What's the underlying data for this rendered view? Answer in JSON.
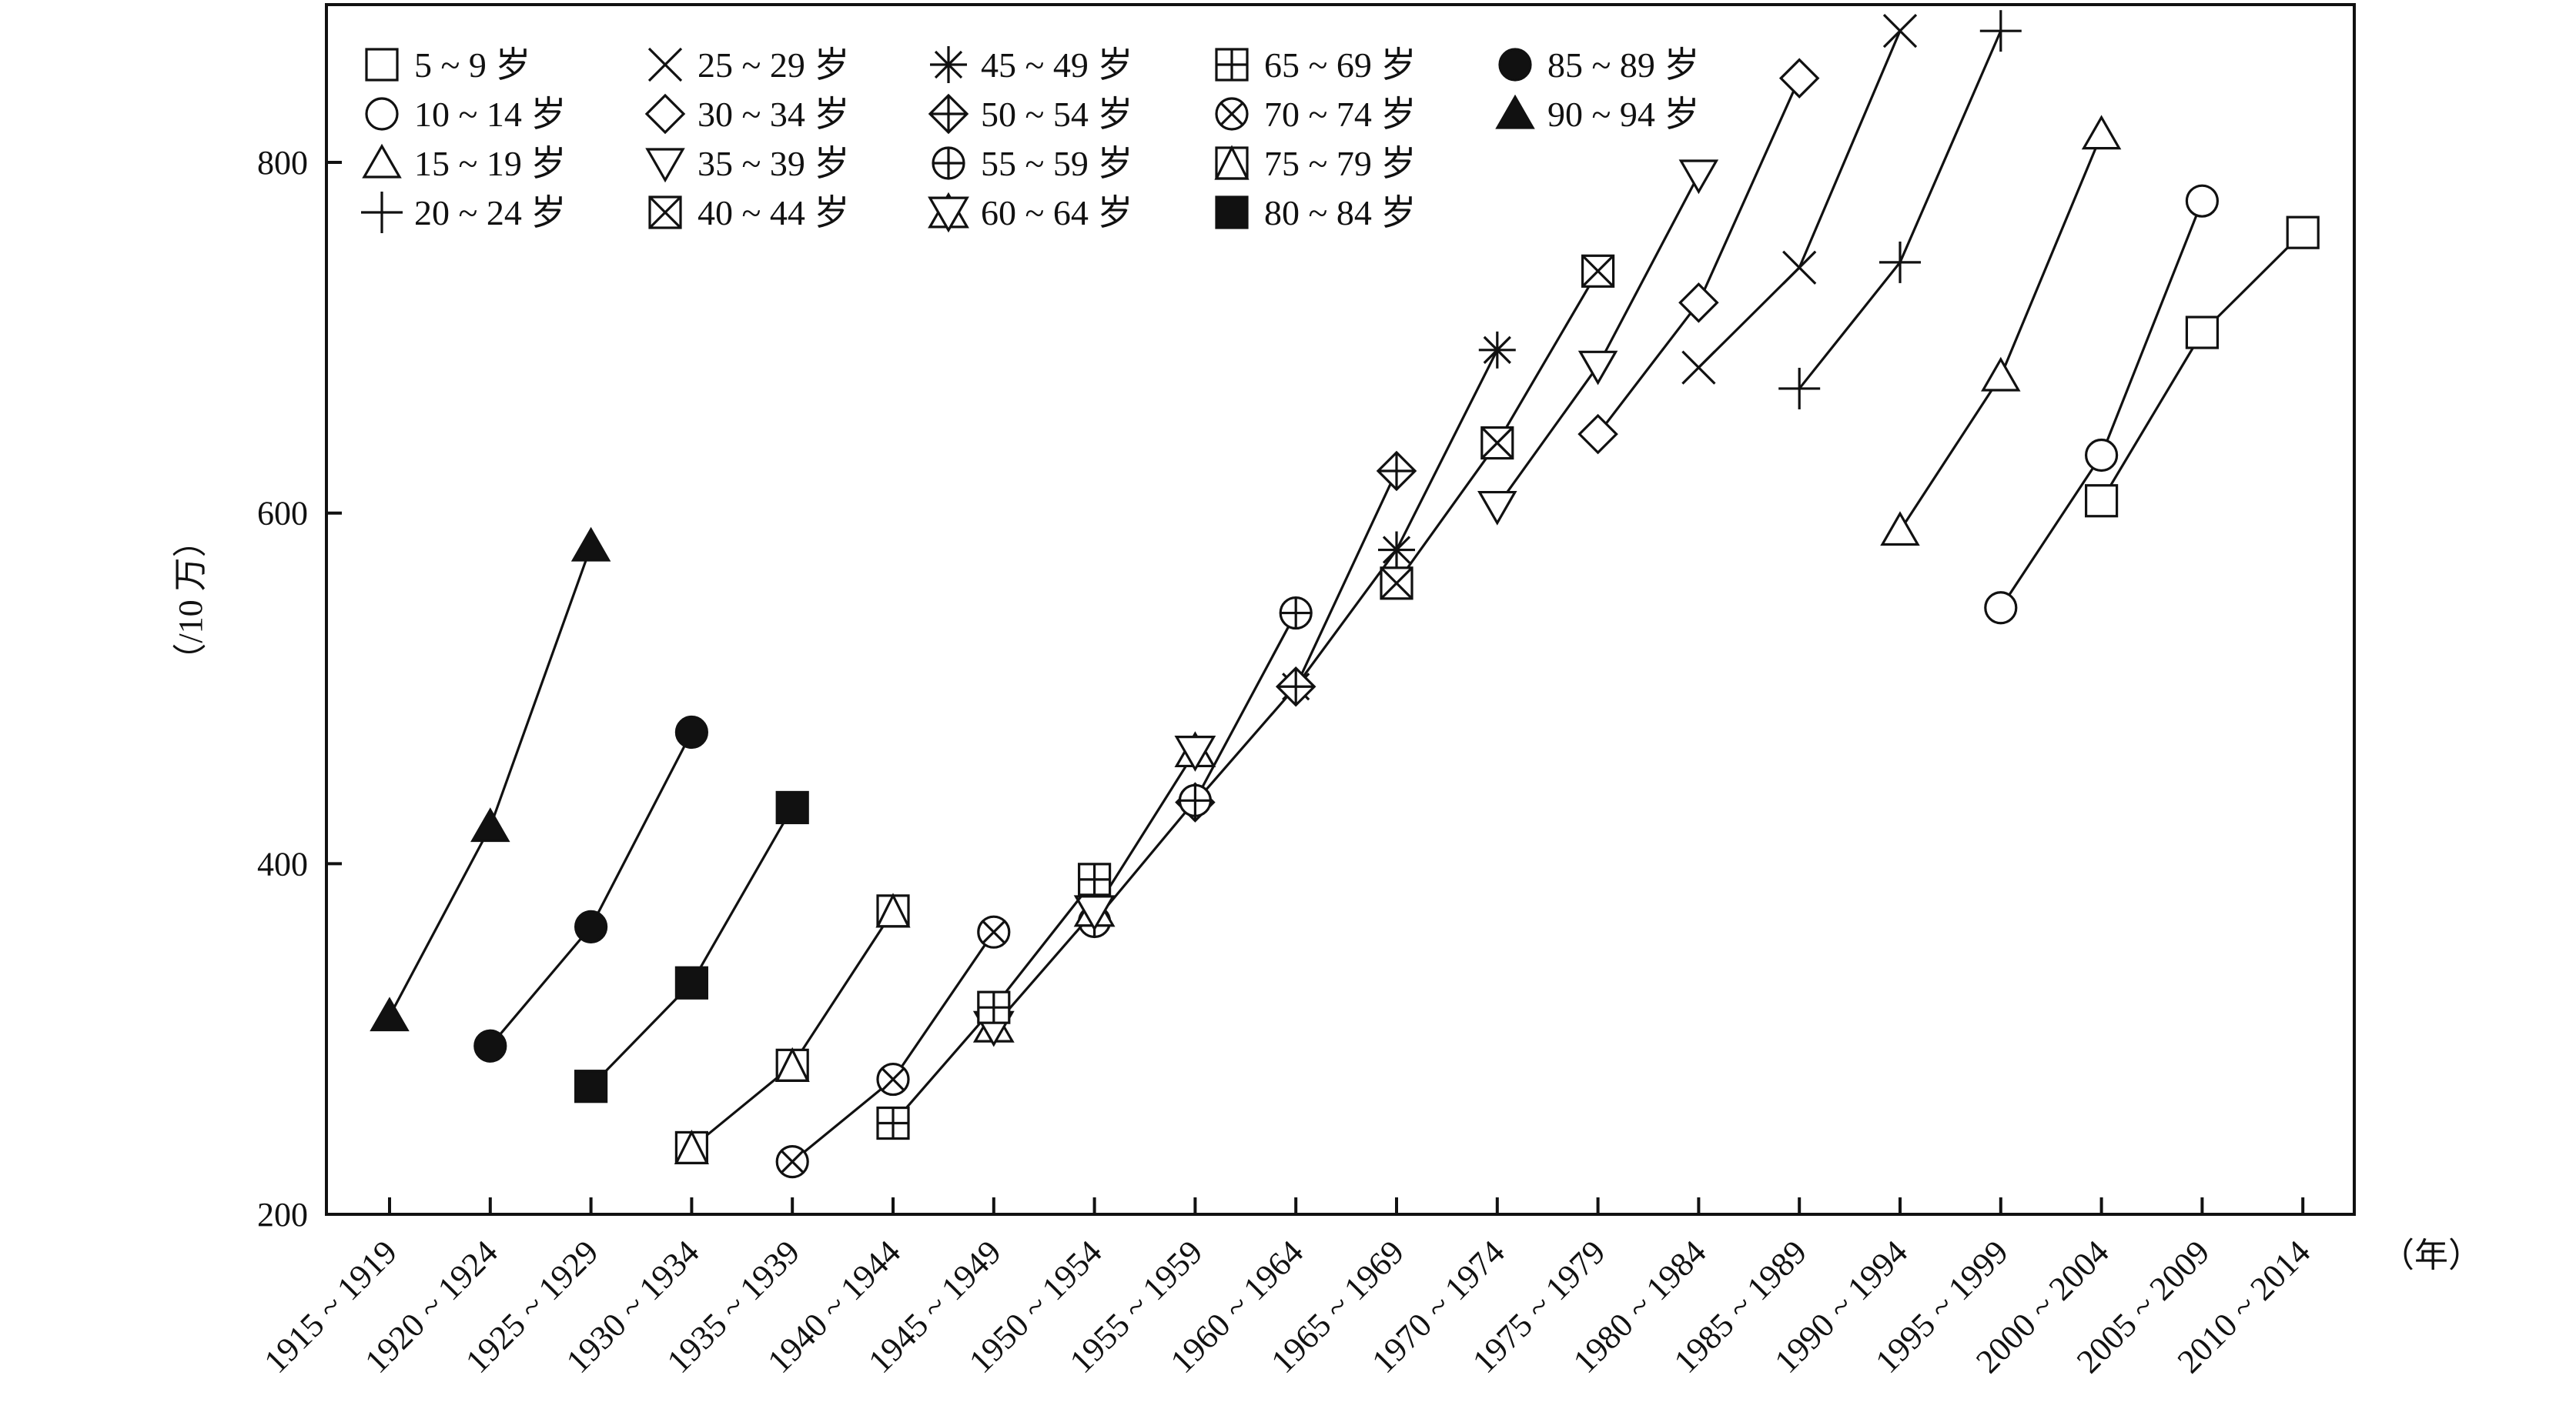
{
  "chart_data": {
    "type": "line",
    "title": "",
    "xlabel": "（年）",
    "ylabel": "（/10 万）",
    "ylim": [
      200,
      890
    ],
    "yticks": [
      200,
      400,
      600,
      800
    ],
    "grid": false,
    "legend_placement": "top-left",
    "categories": [
      "1915 ~ 1919",
      "1920 ~ 1924",
      "1925 ~ 1929",
      "1930 ~ 1934",
      "1935 ~ 1939",
      "1940 ~ 1944",
      "1945 ~ 1949",
      "1950 ~ 1954",
      "1955 ~ 1959",
      "1960 ~ 1964",
      "1965 ~ 1969",
      "1970 ~ 1974",
      "1975 ~ 1979",
      "1980 ~ 1984",
      "1985 ~ 1989",
      "1990 ~ 1994",
      "1995 ~ 1999",
      "2000 ~ 2004",
      "2005 ~ 2009",
      "2010 ~ 2014"
    ],
    "series": [
      {
        "name": "5 ~ 9 岁",
        "marker": "square-open",
        "points": [
          [
            17,
            607
          ],
          [
            18,
            703
          ],
          [
            19,
            760
          ]
        ]
      },
      {
        "name": "10 ~ 14 岁",
        "marker": "circle-open",
        "points": [
          [
            16,
            546
          ],
          [
            17,
            633
          ],
          [
            18,
            778
          ]
        ]
      },
      {
        "name": "15 ~ 19 岁",
        "marker": "triangle-up-open",
        "points": [
          [
            15,
            590
          ],
          [
            16,
            678
          ],
          [
            17,
            816
          ]
        ]
      },
      {
        "name": "20 ~ 24 岁",
        "marker": "plus",
        "points": [
          [
            14,
            671
          ],
          [
            15,
            743
          ],
          [
            16,
            875
          ]
        ]
      },
      {
        "name": "25 ~ 29 岁",
        "marker": "x",
        "points": [
          [
            13,
            683
          ],
          [
            14,
            740
          ],
          [
            15,
            875
          ]
        ]
      },
      {
        "name": "30 ~ 34 岁",
        "marker": "diamond-open",
        "points": [
          [
            12,
            645
          ],
          [
            13,
            720
          ],
          [
            14,
            848
          ]
        ]
      },
      {
        "name": "35 ~ 39 岁",
        "marker": "triangle-down-open",
        "points": [
          [
            11,
            604
          ],
          [
            12,
            684
          ],
          [
            13,
            793
          ]
        ]
      },
      {
        "name": "40 ~ 44 岁",
        "marker": "square-x",
        "points": [
          [
            10,
            560
          ],
          [
            11,
            640
          ],
          [
            12,
            738
          ]
        ]
      },
      {
        "name": "45 ~ 49 岁",
        "marker": "asterisk",
        "points": [
          [
            9,
            501
          ],
          [
            10,
            579
          ],
          [
            11,
            693
          ]
        ]
      },
      {
        "name": "50 ~ 54 岁",
        "marker": "diamond-plus",
        "points": [
          [
            8,
            435
          ],
          [
            9,
            501
          ],
          [
            10,
            624
          ]
        ]
      },
      {
        "name": "55 ~ 59 岁",
        "marker": "circle-plus",
        "points": [
          [
            7,
            367
          ],
          [
            8,
            436
          ],
          [
            9,
            543
          ]
        ]
      },
      {
        "name": "60 ~ 64 岁",
        "marker": "star-of-david",
        "points": [
          [
            6,
            307
          ],
          [
            7,
            373
          ],
          [
            8,
            464
          ]
        ]
      },
      {
        "name": "65 ~ 69 岁",
        "marker": "square-plus",
        "points": [
          [
            5,
            252
          ],
          [
            6,
            318
          ],
          [
            7,
            391
          ]
        ]
      },
      {
        "name": "70 ~ 74 岁",
        "marker": "circle-x",
        "points": [
          [
            4,
            230
          ],
          [
            5,
            277
          ],
          [
            6,
            361
          ]
        ]
      },
      {
        "name": "75 ~ 79 岁",
        "marker": "square-triangle",
        "points": [
          [
            3,
            238
          ],
          [
            4,
            285
          ],
          [
            5,
            373
          ]
        ]
      },
      {
        "name": "80 ~ 84 岁",
        "marker": "square-filled",
        "points": [
          [
            2,
            273
          ],
          [
            3,
            332
          ],
          [
            4,
            432
          ]
        ]
      },
      {
        "name": "85 ~ 89 岁",
        "marker": "circle-filled",
        "points": [
          [
            1,
            296
          ],
          [
            2,
            364
          ],
          [
            3,
            475
          ]
        ]
      },
      {
        "name": "90 ~ 94 岁",
        "marker": "triangle-up-filled",
        "points": [
          [
            0,
            313
          ],
          [
            1,
            421
          ],
          [
            2,
            581
          ]
        ]
      }
    ]
  }
}
